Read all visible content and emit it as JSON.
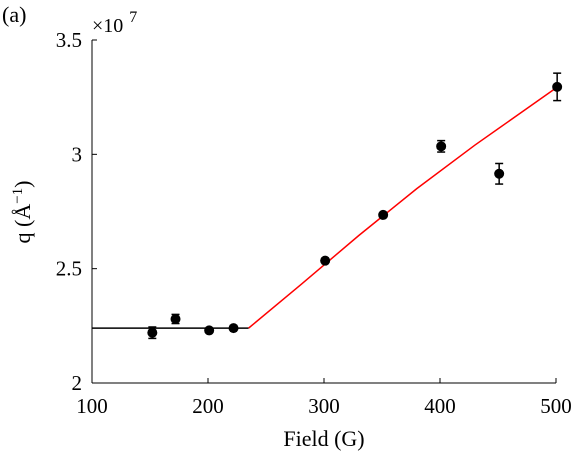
{
  "panel_label": "(a)",
  "chart_data": {
    "type": "scatter",
    "xlabel": "Field (G)",
    "ylabel_main": "q (Å",
    "ylabel_exp": "−1",
    "ylabel_close": ")",
    "y_multiplier_base": "×10",
    "y_multiplier_exp": "7",
    "xlim": [
      100,
      500
    ],
    "ylim": [
      2.0,
      3.5
    ],
    "x_ticks": [
      100,
      200,
      300,
      400,
      500
    ],
    "x_tick_labels": [
      "100",
      "200",
      "300",
      "400",
      "500"
    ],
    "y_ticks": [
      2.0,
      2.5,
      3.0,
      3.5
    ],
    "y_tick_labels": [
      "2",
      "2.5",
      "3",
      "3.5"
    ],
    "grid": false,
    "points": [
      {
        "x": 152,
        "y": 2.22,
        "err": 0.025
      },
      {
        "x": 172,
        "y": 2.28,
        "err": 0.02
      },
      {
        "x": 201,
        "y": 2.23,
        "err": 0.0
      },
      {
        "x": 222,
        "y": 2.24,
        "err": 0.0
      },
      {
        "x": 301,
        "y": 2.535,
        "err": 0.0
      },
      {
        "x": 351,
        "y": 2.735,
        "err": 0.0
      },
      {
        "x": 401,
        "y": 3.035,
        "err": 0.025
      },
      {
        "x": 451,
        "y": 2.915,
        "err": 0.045
      },
      {
        "x": 501,
        "y": 3.295,
        "err": 0.06
      }
    ],
    "fit_flat": {
      "color": "#000000",
      "x_start": 100,
      "x_end": 235,
      "y": 2.24
    },
    "fit_rise": {
      "color": "#ff0000",
      "points": [
        [
          235,
          2.24
        ],
        [
          280,
          2.43
        ],
        [
          330,
          2.645
        ],
        [
          380,
          2.85
        ],
        [
          430,
          3.04
        ],
        [
          500,
          3.29
        ]
      ]
    }
  }
}
